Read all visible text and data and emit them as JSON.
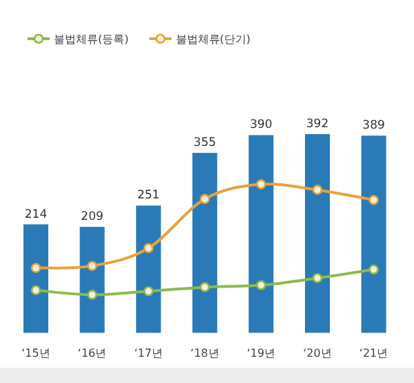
{
  "chart_data": {
    "type": "bar",
    "categories": [
      "‘15년",
      "‘16년",
      "‘17년",
      "‘18년",
      "‘19년",
      "‘20년",
      "‘21년"
    ],
    "series": [
      {
        "color": "#2a7ab8",
        "values": [
          214,
          209,
          251,
          355,
          390,
          392,
          389
        ],
        "value_labels": [
          "214",
          "209",
          "251",
          "355",
          "390",
          "392",
          "389"
        ]
      },
      {
        "type": "line",
        "name": "불법체류(등록)",
        "color": "#8dba4c",
        "values": [
          84,
          75,
          82,
          90,
          94,
          108,
          125
        ]
      },
      {
        "type": "line",
        "name": "불법체류(단기)",
        "color": "#e9a23b",
        "values": [
          128,
          132,
          167,
          264,
          293,
          282,
          262
        ]
      }
    ],
    "legend": "top left",
    "marker": "circle"
  }
}
